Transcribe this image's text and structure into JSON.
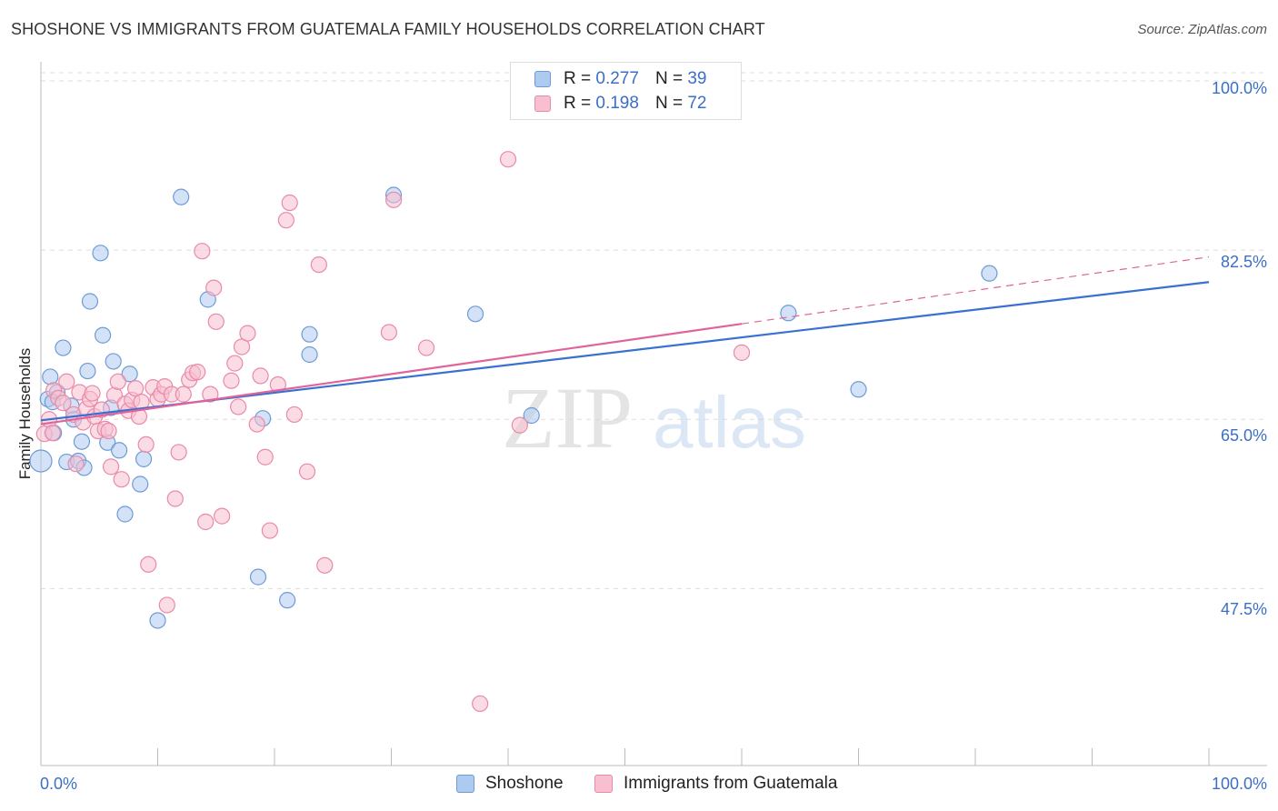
{
  "header": {
    "title": "SHOSHONE VS IMMIGRANTS FROM GUATEMALA FAMILY HOUSEHOLDS CORRELATION CHART",
    "source": "Source: ZipAtlas.com"
  },
  "watermark": {
    "zip": "ZIP",
    "atlas": "atlas"
  },
  "legend_top": {
    "rows": [
      {
        "r_label": "R =",
        "r_value": "0.277",
        "n_label": "N =",
        "n_value": "39"
      },
      {
        "r_label": "R =",
        "r_value": "0.198",
        "n_label": "N =",
        "n_value": "72"
      }
    ]
  },
  "colors": {
    "blue_fill": "#aecbef",
    "blue_stroke": "#6e9bd6",
    "blue_line": "#3a70cf",
    "pink_fill": "#f7bfd0",
    "pink_stroke": "#e98aa9",
    "pink_line": "#e0649a",
    "accent_text": "#3b6fc7",
    "grid": "#dddddd"
  },
  "chart_data": {
    "type": "scatter",
    "title": "SHOSHONE VS IMMIGRANTS FROM GUATEMALA FAMILY HOUSEHOLDS CORRELATION CHART",
    "xlabel": "",
    "ylabel": "Family Households",
    "x_tick_labels": [
      "0.0%",
      "100.0%"
    ],
    "y_tick_labels": [
      "100.0%",
      "82.5%",
      "65.0%",
      "47.5%"
    ],
    "y_ticks": [
      100.0,
      82.5,
      65.0,
      47.5
    ],
    "xlim": [
      0,
      100
    ],
    "ylim": [
      29.2,
      101.6
    ],
    "grid": true,
    "legend_position": "bottom",
    "series": [
      {
        "name": "Shoshone",
        "color": "blue",
        "R": 0.277,
        "N": 39,
        "trend": {
          "x0": 0,
          "y0": 64.9,
          "x1": 100,
          "y1": 79.2,
          "dashed_from": null
        },
        "points": [
          [
            0.0,
            60.7
          ],
          [
            0.6,
            67.1
          ],
          [
            0.8,
            69.4
          ],
          [
            1.1,
            63.6
          ],
          [
            1.4,
            67.8
          ],
          [
            1.9,
            72.4
          ],
          [
            2.2,
            60.6
          ],
          [
            2.6,
            66.4
          ],
          [
            2.8,
            65.0
          ],
          [
            3.2,
            60.7
          ],
          [
            3.5,
            62.7
          ],
          [
            3.7,
            60.0
          ],
          [
            4.0,
            70.0
          ],
          [
            4.2,
            77.2
          ],
          [
            5.1,
            82.2
          ],
          [
            5.3,
            73.7
          ],
          [
            5.7,
            62.6
          ],
          [
            6.0,
            66.2
          ],
          [
            6.2,
            71.0
          ],
          [
            6.7,
            61.8
          ],
          [
            7.2,
            55.2
          ],
          [
            7.6,
            69.7
          ],
          [
            8.5,
            58.3
          ],
          [
            8.8,
            60.9
          ],
          [
            10.0,
            44.2
          ],
          [
            12.0,
            88.0
          ],
          [
            14.3,
            77.4
          ],
          [
            19.0,
            65.1
          ],
          [
            18.6,
            48.7
          ],
          [
            21.1,
            46.3
          ],
          [
            23.0,
            73.8
          ],
          [
            23.0,
            71.7
          ],
          [
            30.2,
            88.2
          ],
          [
            37.2,
            75.9
          ],
          [
            42.0,
            65.4
          ],
          [
            64.0,
            76.0
          ],
          [
            70.0,
            68.1
          ],
          [
            81.2,
            80.1
          ],
          [
            1.0,
            66.8
          ]
        ]
      },
      {
        "name": "Immigrants from Guatemala",
        "color": "pink",
        "R": 0.198,
        "N": 72,
        "trend": {
          "x0": 0,
          "y0": 64.5,
          "x1": 100,
          "y1": 81.8,
          "dashed_from": 60
        },
        "points": [
          [
            0.3,
            63.5
          ],
          [
            0.7,
            65.0
          ],
          [
            1.1,
            68.0
          ],
          [
            1.5,
            67.2
          ],
          [
            1.9,
            66.7
          ],
          [
            2.2,
            68.9
          ],
          [
            2.8,
            65.5
          ],
          [
            3.0,
            60.4
          ],
          [
            3.3,
            67.8
          ],
          [
            3.6,
            64.7
          ],
          [
            3.9,
            66.1
          ],
          [
            4.2,
            67.1
          ],
          [
            4.4,
            67.7
          ],
          [
            4.6,
            65.3
          ],
          [
            4.9,
            63.8
          ],
          [
            5.2,
            66.0
          ],
          [
            5.5,
            64.0
          ],
          [
            5.8,
            63.8
          ],
          [
            6.0,
            60.1
          ],
          [
            6.3,
            67.5
          ],
          [
            6.6,
            68.9
          ],
          [
            6.9,
            58.8
          ],
          [
            7.2,
            66.6
          ],
          [
            7.5,
            65.9
          ],
          [
            7.8,
            67.0
          ],
          [
            8.1,
            68.2
          ],
          [
            8.4,
            65.3
          ],
          [
            8.6,
            66.8
          ],
          [
            9.0,
            62.4
          ],
          [
            9.2,
            50.0
          ],
          [
            9.6,
            68.3
          ],
          [
            10.0,
            67.1
          ],
          [
            10.3,
            67.6
          ],
          [
            10.6,
            68.4
          ],
          [
            10.8,
            45.8
          ],
          [
            11.2,
            67.6
          ],
          [
            11.5,
            56.8
          ],
          [
            11.8,
            61.6
          ],
          [
            12.2,
            67.6
          ],
          [
            12.7,
            69.1
          ],
          [
            13.0,
            69.8
          ],
          [
            13.4,
            69.9
          ],
          [
            13.8,
            82.4
          ],
          [
            14.1,
            54.4
          ],
          [
            14.5,
            67.6
          ],
          [
            14.8,
            78.6
          ],
          [
            15.0,
            75.1
          ],
          [
            15.5,
            55.0
          ],
          [
            16.3,
            69.0
          ],
          [
            16.6,
            70.8
          ],
          [
            16.9,
            66.3
          ],
          [
            17.2,
            72.5
          ],
          [
            17.7,
            73.9
          ],
          [
            18.8,
            69.5
          ],
          [
            19.2,
            61.1
          ],
          [
            19.6,
            53.5
          ],
          [
            20.3,
            68.6
          ],
          [
            21.0,
            85.6
          ],
          [
            21.3,
            87.4
          ],
          [
            21.7,
            65.5
          ],
          [
            22.8,
            59.6
          ],
          [
            23.8,
            81.0
          ],
          [
            24.3,
            49.9
          ],
          [
            29.8,
            74.0
          ],
          [
            30.2,
            87.7
          ],
          [
            33.0,
            72.4
          ],
          [
            37.6,
            35.6
          ],
          [
            40.0,
            91.9
          ],
          [
            41.0,
            64.4
          ],
          [
            18.5,
            64.5
          ],
          [
            60.0,
            71.9
          ],
          [
            1.0,
            63.6
          ]
        ]
      }
    ]
  },
  "bottom_legend": {
    "items": [
      {
        "label": "Shoshone"
      },
      {
        "label": "Immigrants from Guatemala"
      }
    ]
  }
}
